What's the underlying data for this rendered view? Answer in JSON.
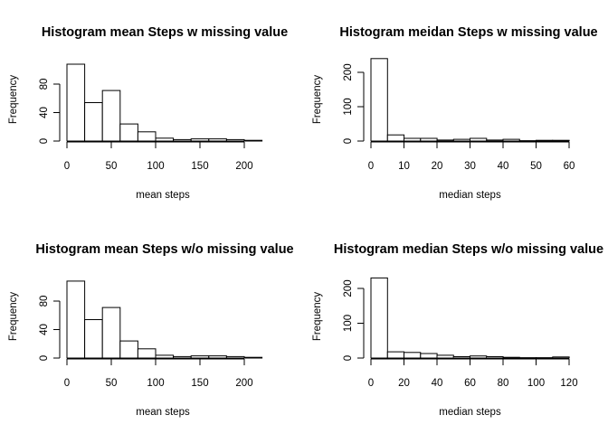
{
  "chart_data": [
    {
      "type": "bar",
      "title": "Histogram mean Steps w missing value",
      "xlabel": "mean steps",
      "ylabel": "Frequency",
      "xlim": [
        0,
        220
      ],
      "ylim": [
        0,
        110
      ],
      "x_ticks": [
        0,
        50,
        100,
        150,
        200
      ],
      "y_ticks": [
        0,
        40,
        80
      ],
      "bin_width": 20,
      "bin_edges": [
        0,
        20,
        40,
        60,
        80,
        100,
        120,
        140,
        160,
        180,
        200,
        220
      ],
      "values": [
        108,
        54,
        71,
        24,
        13,
        4,
        2,
        3,
        3,
        2,
        1
      ]
    },
    {
      "type": "bar",
      "title": "Histogram meidan Steps w missing value",
      "xlabel": "median steps",
      "ylabel": "Frequency",
      "xlim": [
        0,
        60
      ],
      "ylim": [
        0,
        240
      ],
      "x_ticks": [
        0,
        10,
        20,
        30,
        40,
        50,
        60
      ],
      "y_ticks": [
        0,
        100,
        200
      ],
      "bin_width": 5,
      "bin_edges": [
        0,
        5,
        10,
        15,
        20,
        25,
        30,
        35,
        40,
        45,
        50,
        55,
        60
      ],
      "values": [
        240,
        18,
        8,
        8,
        3,
        5,
        8,
        3,
        5,
        1,
        2,
        2
      ]
    },
    {
      "type": "bar",
      "title": "Histogram mean Steps w/o missing value",
      "xlabel": "mean steps",
      "ylabel": "Frequency",
      "xlim": [
        0,
        220
      ],
      "ylim": [
        0,
        110
      ],
      "x_ticks": [
        0,
        50,
        100,
        150,
        200
      ],
      "y_ticks": [
        0,
        40,
        80
      ],
      "bin_width": 20,
      "bin_edges": [
        0,
        20,
        40,
        60,
        80,
        100,
        120,
        140,
        160,
        180,
        200,
        220
      ],
      "values": [
        108,
        54,
        71,
        24,
        13,
        4,
        2,
        3,
        3,
        2,
        1
      ]
    },
    {
      "type": "bar",
      "title": "Histogram median Steps w/o missing value",
      "xlabel": "median steps",
      "ylabel": "Frequency",
      "xlim": [
        0,
        120
      ],
      "ylim": [
        0,
        240
      ],
      "x_ticks": [
        0,
        20,
        40,
        60,
        80,
        100,
        120
      ],
      "y_ticks": [
        0,
        100,
        200
      ],
      "bin_width": 10,
      "bin_edges": [
        0,
        10,
        20,
        30,
        40,
        50,
        60,
        70,
        80,
        90,
        100,
        110,
        120
      ],
      "values": [
        230,
        18,
        16,
        13,
        8,
        4,
        6,
        4,
        2,
        1,
        1,
        3
      ]
    }
  ]
}
